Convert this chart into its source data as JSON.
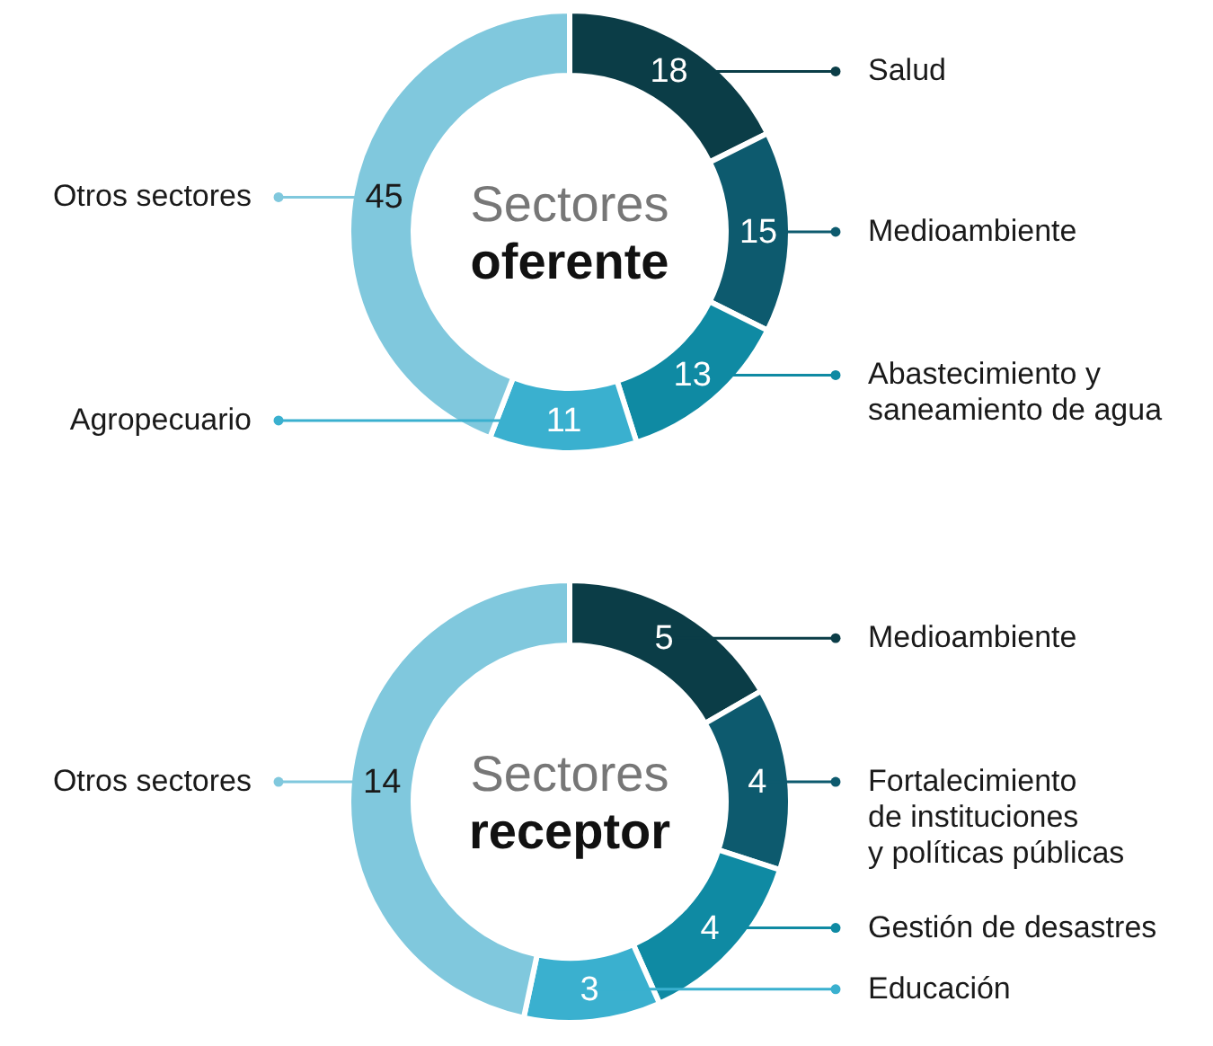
{
  "chart_data": [
    {
      "type": "donut",
      "title": "Sectores oferente",
      "categories": [
        "Salud",
        "Medioambiente",
        "Abastecimiento y\nsaneamiento de agua",
        "Agropecuario",
        "Otros sectores"
      ],
      "values": [
        18,
        15,
        13,
        11,
        45
      ],
      "colors": [
        "#0b3d47",
        "#0d5a6e",
        "#0f8aa3",
        "#3ab0cf",
        "#80c8dd"
      ],
      "data_labels": true,
      "legend": "right"
    },
    {
      "type": "donut",
      "title": "Sectores receptor",
      "categories": [
        "Medioambiente",
        "Fortalecimiento\nde instituciones\ny políticas públicas",
        "Gestión de desastres",
        "Educación",
        "Otros sectores"
      ],
      "values": [
        5,
        4,
        4,
        3,
        14
      ],
      "colors": [
        "#0b3d47",
        "#0d5a6e",
        "#0f8aa3",
        "#3ab0cf",
        "#80c8dd"
      ],
      "data_labels": true,
      "legend": "right"
    }
  ]
}
